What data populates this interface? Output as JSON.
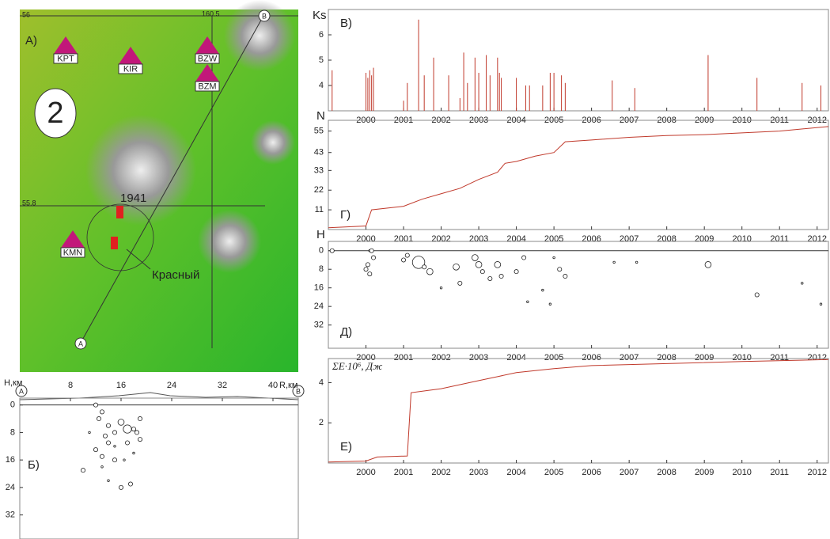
{
  "map": {
    "panel_label": "А)",
    "number": "2",
    "stations": [
      "KPT",
      "KIR",
      "BZW",
      "BZM",
      "KMN"
    ],
    "lat_labels": [
      "56",
      "55.8"
    ],
    "lon_label": "160.5",
    "point_labels": [
      "A",
      "B"
    ],
    "year_label": "1941",
    "volcano": "Красный"
  },
  "chart_data": [
    {
      "type": "spike",
      "label": "В)",
      "y_label": "Ks",
      "color": "#c0392b",
      "xlim": [
        1999,
        2012.3
      ],
      "ylim": [
        3,
        7
      ],
      "xticks": [
        2000,
        2001,
        2002,
        2003,
        2004,
        2005,
        2006,
        2007,
        2008,
        2009,
        2010,
        2011,
        2012
      ],
      "yticks": [
        4,
        5,
        6
      ],
      "x": [
        1999.1,
        2000.0,
        2000.05,
        2000.1,
        2000.15,
        2000.2,
        2001.0,
        2001.1,
        2001.4,
        2001.55,
        2001.8,
        2002.2,
        2002.5,
        2002.6,
        2002.7,
        2002.9,
        2003.0,
        2003.2,
        2003.3,
        2003.5,
        2003.55,
        2003.6,
        2004.0,
        2004.25,
        2004.35,
        2004.7,
        2004.9,
        2005.0,
        2005.2,
        2005.3,
        2006.55,
        2007.15,
        2009.1,
        2010.4,
        2011.6,
        2012.1
      ],
      "values": [
        4.6,
        4.5,
        4.3,
        4.6,
        4.4,
        4.7,
        3.4,
        4.1,
        6.6,
        4.4,
        5.1,
        4.4,
        3.5,
        5.3,
        4.1,
        5.1,
        4.5,
        5.2,
        4.4,
        5.1,
        4.5,
        4.3,
        4.3,
        4.0,
        4.0,
        4.0,
        4.5,
        4.5,
        4.4,
        4.1,
        4.2,
        3.9,
        5.2,
        4.3,
        4.1,
        4.0
      ]
    },
    {
      "type": "line",
      "label": "Г)",
      "y_label": "N",
      "color": "#c0392b",
      "xlim": [
        1999,
        2012.3
      ],
      "ylim": [
        0,
        61
      ],
      "xticks": [
        2000,
        2001,
        2002,
        2003,
        2004,
        2005,
        2006,
        2007,
        2008,
        2009,
        2010,
        2011,
        2012
      ],
      "yticks": [
        11,
        22,
        33,
        43,
        55
      ],
      "x": [
        1999,
        2000,
        2000.15,
        2001,
        2001.5,
        2002,
        2002.5,
        2003,
        2003.5,
        2003.7,
        2004,
        2004.5,
        2005,
        2005.3,
        2006,
        2007,
        2008,
        2009,
        2010,
        2011,
        2012.3
      ],
      "values": [
        1,
        2,
        11,
        13,
        17,
        20,
        23,
        28,
        32,
        37,
        38,
        41,
        43,
        49,
        50,
        51.5,
        52.5,
        53,
        54,
        55,
        57.5
      ]
    },
    {
      "type": "scatter",
      "label": "Д)",
      "y_label": "H",
      "color": "#222",
      "y_inverted": true,
      "xlim": [
        1999,
        2012.3
      ],
      "ylim": [
        -4,
        42
      ],
      "xticks": [
        2000,
        2001,
        2002,
        2003,
        2004,
        2005,
        2006,
        2007,
        2008,
        2009,
        2010,
        2011,
        2012
      ],
      "yticks": [
        0,
        8,
        16,
        24,
        32
      ],
      "x": [
        1999.1,
        2000.1,
        2000.15,
        2000.0,
        2000.05,
        2000.1,
        2000.2,
        2001.0,
        2001.1,
        2001.4,
        2001.55,
        2001.7,
        2002.0,
        2002.4,
        2002.5,
        2002.9,
        2003.0,
        2003.1,
        2003.3,
        2003.5,
        2003.6,
        2004.2,
        2004.0,
        2004.3,
        2004.7,
        2004.9,
        2005.0,
        2005.15,
        2005.3,
        2006.6,
        2007.2,
        2009.1,
        2010.4,
        2011.6,
        2012.1
      ],
      "values": [
        0,
        0,
        0,
        8,
        6,
        10,
        3,
        4,
        2,
        5,
        7,
        9,
        16,
        7,
        14,
        3,
        6,
        9,
        12,
        6,
        11,
        3,
        9,
        22,
        17,
        23,
        3,
        8,
        11,
        5,
        5,
        6,
        19,
        14,
        23
      ],
      "sizes": [
        2,
        1,
        2,
        2,
        2,
        2,
        2,
        2,
        2,
        6,
        2,
        3,
        1,
        3,
        2,
        3,
        3,
        2,
        2,
        3,
        2,
        2,
        2,
        1,
        1,
        1,
        1,
        2,
        2,
        1,
        1,
        3,
        2,
        1,
        1
      ]
    },
    {
      "type": "line",
      "label": "Е)",
      "y_label": "ΣE·10⁶, Дж",
      "color": "#c0392b",
      "xlim": [
        1999,
        2012.3
      ],
      "ylim": [
        0,
        5.2
      ],
      "xticks": [
        2000,
        2001,
        2002,
        2003,
        2004,
        2005,
        2006,
        2007,
        2008,
        2009,
        2010,
        2011,
        2012
      ],
      "yticks": [
        2,
        4
      ],
      "x": [
        1999,
        2000,
        2000.3,
        2001.1,
        2001.2,
        2001.6,
        2002,
        2002.5,
        2003,
        2003.5,
        2004,
        2005,
        2006,
        2008,
        2010,
        2012.3
      ],
      "values": [
        0.05,
        0.1,
        0.3,
        0.35,
        3.5,
        3.6,
        3.7,
        3.9,
        4.1,
        4.3,
        4.5,
        4.7,
        4.85,
        4.95,
        5.05,
        5.15
      ]
    },
    {
      "type": "scatter",
      "label": "Б)",
      "y_label": "H,км",
      "x_label": "R,км",
      "xaxis": "top",
      "color": "#222",
      "y_inverted": true,
      "xlim": [
        0,
        44
      ],
      "ylim": [
        -2,
        39
      ],
      "xticks": [
        8,
        16,
        24,
        32,
        40
      ],
      "yticks": [
        0,
        8,
        16,
        24,
        32
      ],
      "x": [
        12,
        13,
        12.5,
        14,
        11,
        13.5,
        15,
        12,
        13,
        15,
        16,
        17,
        18,
        19,
        19,
        17,
        14,
        18,
        10,
        13,
        14,
        16,
        17.5,
        16.5,
        15,
        18.5
      ],
      "values": [
        0,
        2,
        4,
        6,
        8,
        9,
        12,
        13,
        15,
        16,
        5,
        7,
        7,
        4,
        10,
        11,
        11,
        14,
        19,
        18,
        22,
        24,
        23,
        16,
        8,
        8
      ],
      "sizes": [
        2,
        2,
        2,
        2,
        1,
        2,
        1,
        2,
        2,
        2,
        3,
        4,
        2,
        2,
        2,
        2,
        2,
        1,
        2,
        1,
        1,
        2,
        2,
        1,
        2,
        2
      ]
    }
  ]
}
